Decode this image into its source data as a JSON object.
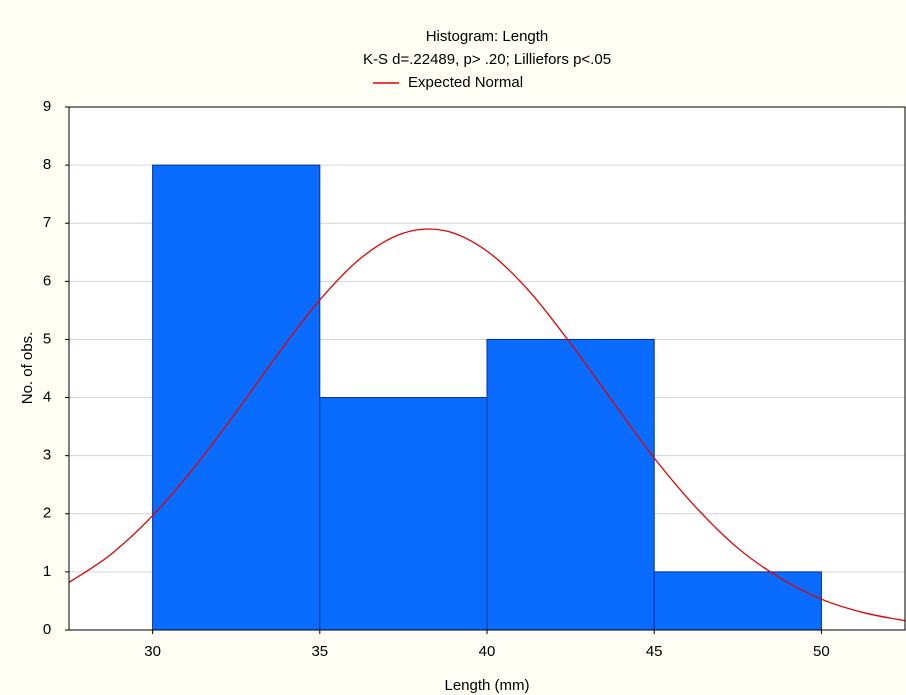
{
  "chart_data": {
    "type": "histogram",
    "title": "Histogram: Length",
    "subtitle": "K-S d=.22489, p> .20; Lilliefors p<.05",
    "xlabel": "Length (mm)",
    "ylabel": "No. of obs.",
    "bins": [
      30,
      35,
      40,
      45,
      50
    ],
    "values": [
      8,
      4,
      5,
      1
    ],
    "color": "#0a6cff",
    "edge_color": "#00309a",
    "series": [
      {
        "name": "Expected Normal",
        "color": "#e00000",
        "x": [
          27.5,
          28.75,
          30,
          31.25,
          32.5,
          33.75,
          35,
          36.25,
          37.5,
          38.75,
          40,
          41.25,
          42.5,
          43.75,
          45,
          46.25,
          47.5,
          48.75,
          50,
          51.25,
          52.5
        ],
        "values": [
          0.82,
          1.3,
          1.97,
          2.8,
          3.75,
          4.75,
          5.68,
          6.41,
          6.83,
          6.87,
          6.52,
          5.84,
          4.93,
          3.94,
          2.96,
          2.11,
          1.41,
          0.9,
          0.53,
          0.3,
          0.16
        ]
      }
    ],
    "xlim": [
      27.5,
      52.5
    ],
    "ylim": [
      0,
      9
    ],
    "xticks": [
      30,
      35,
      40,
      45,
      50
    ],
    "yticks": [
      0,
      1,
      2,
      3,
      4,
      5,
      6,
      7,
      8,
      9
    ],
    "grid": true,
    "legend": "top"
  }
}
